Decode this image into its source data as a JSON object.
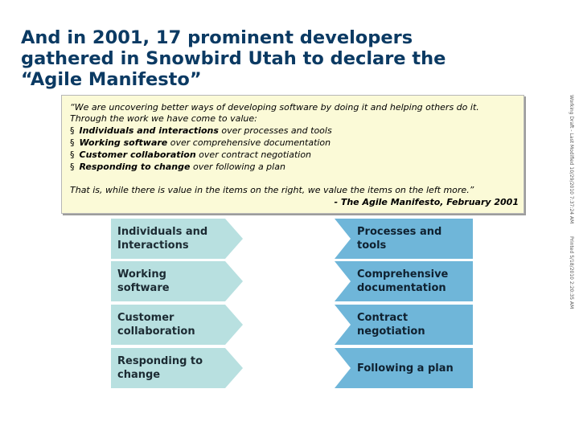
{
  "title": {
    "line1": "And in 2001, 17 prominent developers",
    "line2": "gathered in Snowbird Utah to declare the",
    "line3": "“Agile Manifesto”"
  },
  "quote": {
    "lines": [
      "“We are uncovering better ways of developing software by doing it and helping others do it.",
      "Through the work we have come to value:"
    ],
    "bullets": [
      {
        "strong": "Individuals and interactions",
        "rest": " over processes and tools"
      },
      {
        "strong": "Working software",
        "rest": " over comprehensive documentation"
      },
      {
        "strong": "Customer collaboration",
        "rest": " over contract negotiation"
      },
      {
        "strong": "Responding to change",
        "rest": " over following a plan"
      }
    ],
    "bullet_glyph": "§",
    "closing": "That is, while there is value in the items on the right, we value the items on the left more.”",
    "attribution": "- The Agile Manifesto, February 2001"
  },
  "side_notes": [
    "Working Draft - Last Modified 10/29/2010 7:37:24 AM",
    "Printed 5/18/2010 2:20:35 AM"
  ],
  "comparisons": [
    {
      "left": [
        "Individuals and",
        "Interactions"
      ],
      "right": [
        "Processes and",
        "tools"
      ]
    },
    {
      "left": [
        "Working",
        "software"
      ],
      "right": [
        "Comprehensive",
        "documentation"
      ]
    },
    {
      "left": [
        "Customer",
        "collaboration"
      ],
      "right": [
        "Contract",
        "negotiation"
      ]
    },
    {
      "left": [
        "Responding to",
        "change"
      ],
      "right": [
        "Following a plan"
      ]
    }
  ],
  "colors": {
    "title": "#0b3a63",
    "quote_bg": "#fbfad7",
    "left_arrow": "#b8e0e0",
    "right_arrow": "#6fb6d9"
  }
}
